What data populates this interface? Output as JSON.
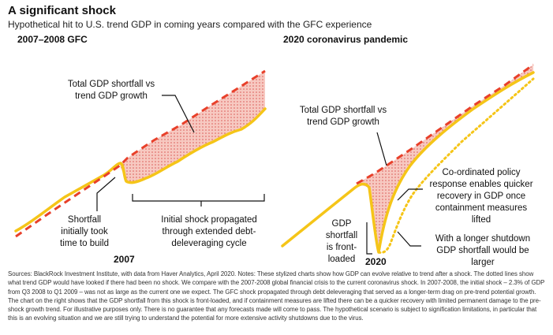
{
  "title": "A significant shock",
  "subtitle": "Hypothetical hit to U.S. trend GDP in coming years compared with the GFC experience",
  "colors": {
    "gdp": "#F5C518",
    "trend": "#E8402A",
    "shortfall_fill": "#F7C9C1",
    "shortfall_dots": "#D9534F",
    "annotation": "#111111"
  },
  "chart_data": [
    {
      "type": "line",
      "title": "2007–2008 GFC",
      "xlabel": "2007",
      "series": [
        {
          "role": "trend GDP (dashed)"
        },
        {
          "role": "total GDP (solid)"
        }
      ],
      "annotations": {
        "shortfall_total": "Total GDP shortfall vs trend GDP growth",
        "shortfall_initial": "Shortfall initially took time to build",
        "propagated": "Initial shock propagated through extended debt-deleveraging cycle"
      }
    },
    {
      "type": "line",
      "title": "2020 coronavirus pandemic",
      "xlabel": "2020",
      "series": [
        {
          "role": "trend GDP (dashed)"
        },
        {
          "role": "total GDP, quick recovery (solid)"
        },
        {
          "role": "total GDP, longer shutdown (dotted)"
        }
      ],
      "annotations": {
        "shortfall_total": "Total GDP shortfall vs trend GDP growth",
        "front_loaded": "GDP shortfall is front-loaded",
        "quicker_recovery": "Co-ordinated policy response enables quicker recovery in GDP once containment measures lifted",
        "longer_shutdown": "With a longer shutdown GDP shortfall would be larger"
      }
    }
  ],
  "labels": {
    "left_head": "2007–2008 GFC",
    "right_head": "2020 coronavirus pandemic",
    "left_total_1": "Total GDP shortfall vs",
    "left_total_2": "trend GDP growth",
    "left_short_1": "Shortfall",
    "left_short_2": "initially took",
    "left_short_3": "time to build",
    "left_prop_1": "Initial shock propagated",
    "left_prop_2": "through extended debt-",
    "left_prop_3": "deleveraging cycle",
    "left_year": "2007",
    "right_total_1": "Total GDP shortfall vs",
    "right_total_2": "trend GDP growth",
    "right_front_1": "GDP",
    "right_front_2": "shortfall",
    "right_front_3": "is front-",
    "right_front_4": "loaded",
    "right_policy_1": "Co-ordinated policy",
    "right_policy_2": "response enables quicker",
    "right_policy_3": "recovery in GDP once",
    "right_policy_4": "containment measures",
    "right_policy_5": "lifted",
    "right_long_1": "With a longer shutdown",
    "right_long_2": "GDP shortfall would be",
    "right_long_3": "larger",
    "right_year": "2020"
  },
  "source": "Sources: BlackRock Investment Institute, with data from Haver Analytics, April 2020. Notes: These stylized charts show how GDP can evolve relative to trend after a shock. The dotted lines show what trend GDP would have looked if there had been no shock. We compare with the 2007-2008 global financial crisis to the current coronavirus shock. In 2007-2008, the initial shock – 2.3% of GDP from Q3 2008 to Q1 2009 – was not as large as the current one we expect. The GFC shock propagated through debt deleveraging that served as a longer-term drag on pre-trend potential growth. The chart on the right shows that the GDP shortfall from this shock is front-loaded, and if containment measures are lifted there can be a quicker recovery with limited permanent damage to the pre-shock growth trend. For illustrative purposes only. There is no guarantee that any forecasts made will come to pass. The hypothetical scenario is subject to signification limitations, in particular that this is an evolving situation and we are still trying to understand the potential for more extensive activity shutdowns due to the virus."
}
